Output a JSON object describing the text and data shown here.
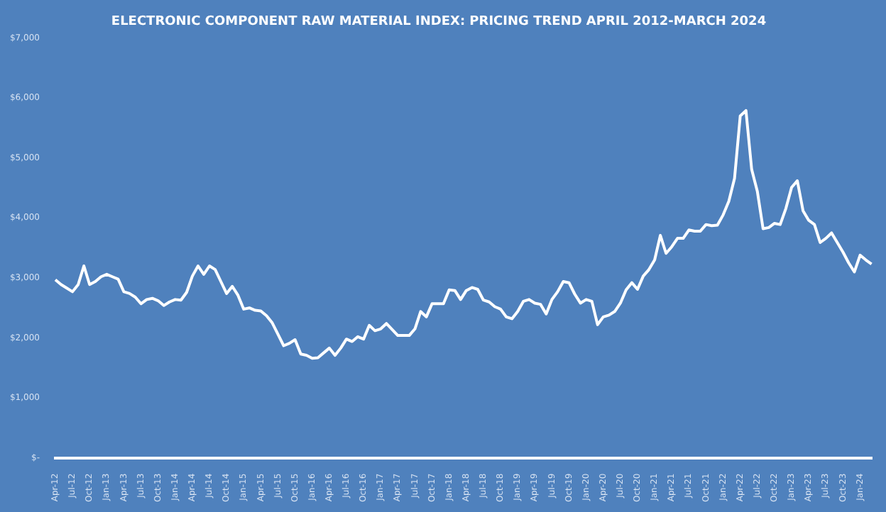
{
  "chart_data": {
    "type": "line",
    "title": "ELECTRONIC COMPONENT RAW MATERIAL INDEX: PRICING TREND APRIL 2012-MARCH 2024",
    "categories": [
      "Apr-12",
      null,
      null,
      "Jul-12",
      null,
      null,
      "Oct-12",
      null,
      null,
      "Jan-13",
      null,
      null,
      "Apr-13",
      null,
      null,
      "Jul-13",
      null,
      null,
      "Oct-13",
      null,
      null,
      "Jan-14",
      null,
      null,
      "Apr-14",
      null,
      null,
      "Jul-14",
      null,
      null,
      "Oct-14",
      null,
      null,
      "Jan-15",
      null,
      null,
      "Apr-15",
      null,
      null,
      "Jul-15",
      null,
      null,
      "Oct-15",
      null,
      null,
      "Jan-16",
      null,
      null,
      "Apr-16",
      null,
      null,
      "Jul-16",
      null,
      null,
      "Oct-16",
      null,
      null,
      "Jan-17",
      null,
      null,
      "Apr-17",
      null,
      null,
      "Jul-17",
      null,
      null,
      "Oct-17",
      null,
      null,
      "Jan-18",
      null,
      null,
      "Apr-18",
      null,
      null,
      "Jul-18",
      null,
      null,
      "Oct-18",
      null,
      null,
      "Jan-19",
      null,
      null,
      "Apr-19",
      null,
      null,
      "Jul-19",
      null,
      null,
      "Oct-19",
      null,
      null,
      "Jan-20",
      null,
      null,
      "Apr-20",
      null,
      null,
      "Jul-20",
      null,
      null,
      "Oct-20",
      null,
      null,
      "Jan-21",
      null,
      null,
      "Apr-21",
      null,
      null,
      "Jul-21",
      null,
      null,
      "Oct-21",
      null,
      null,
      "Jan-22",
      null,
      null,
      "Apr-22",
      null,
      null,
      "Jul-22",
      null,
      null,
      "Oct-22",
      null,
      null,
      "Jan-23",
      null,
      null,
      "Apr-23",
      null,
      null,
      "Jul-23",
      null,
      null,
      "Oct-23",
      null,
      null,
      "Jan-24",
      null,
      null
    ],
    "series": [
      {
        "color": "#ffffff",
        "values": [
          2970,
          2890,
          2830,
          2770,
          2890,
          3200,
          2890,
          2940,
          3020,
          3060,
          3020,
          2980,
          2770,
          2740,
          2680,
          2570,
          2640,
          2660,
          2620,
          2540,
          2600,
          2640,
          2630,
          2760,
          3030,
          3200,
          3060,
          3200,
          3140,
          2940,
          2740,
          2860,
          2710,
          2480,
          2500,
          2460,
          2450,
          2370,
          2250,
          2060,
          1870,
          1910,
          1970,
          1730,
          1710,
          1660,
          1670,
          1750,
          1830,
          1710,
          1830,
          1980,
          1940,
          2020,
          1980,
          2210,
          2120,
          2150,
          2240,
          2140,
          2040,
          2040,
          2040,
          2150,
          2440,
          2350,
          2570,
          2570,
          2570,
          2800,
          2790,
          2640,
          2790,
          2840,
          2810,
          2630,
          2600,
          2520,
          2480,
          2350,
          2320,
          2440,
          2610,
          2640,
          2580,
          2560,
          2400,
          2640,
          2770,
          2940,
          2920,
          2730,
          2580,
          2640,
          2610,
          2220,
          2350,
          2380,
          2440,
          2580,
          2800,
          2920,
          2810,
          3030,
          3140,
          3300,
          3710,
          3410,
          3520,
          3660,
          3660,
          3800,
          3780,
          3780,
          3890,
          3870,
          3880,
          4050,
          4280,
          4660,
          5700,
          5790,
          4810,
          4440,
          3820,
          3840,
          3910,
          3890,
          4160,
          4510,
          4620,
          4120,
          3960,
          3890,
          3590,
          3660,
          3750,
          3590,
          3430,
          3250,
          3100,
          3380,
          3300,
          3230
        ]
      }
    ],
    "ylim": [
      0,
      7000
    ],
    "yticks": [
      {
        "value": 0,
        "label": "$-"
      },
      {
        "value": 1000,
        "label": "$1,000"
      },
      {
        "value": 2000,
        "label": "$2,000"
      },
      {
        "value": 3000,
        "label": "$3,000"
      },
      {
        "value": 4000,
        "label": "$4,000"
      },
      {
        "value": 5000,
        "label": "$5,000"
      },
      {
        "value": 6000,
        "label": "$6,000"
      },
      {
        "value": 7000,
        "label": "$7,000"
      }
    ],
    "grid": false,
    "legend": false,
    "marker": "none",
    "line_style": "solid"
  }
}
